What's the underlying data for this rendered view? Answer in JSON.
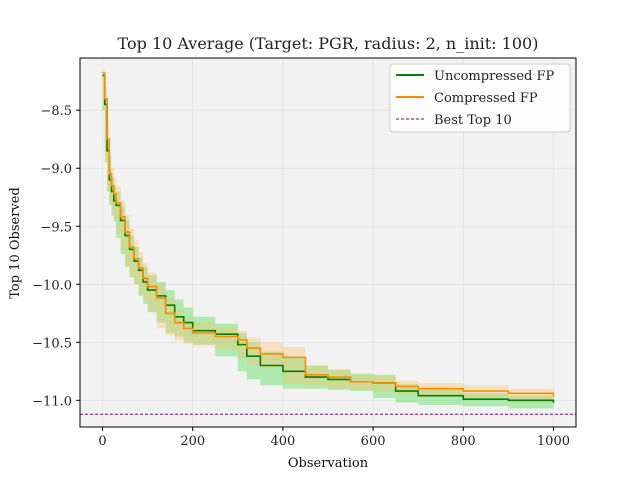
{
  "chart_data": {
    "type": "line",
    "title": "Top 10 Average (Target: PGR, radius: 2, n_init: 100)",
    "xlabel": "Observation",
    "ylabel": "Top 10 Observed",
    "xlim": [
      -50,
      1050
    ],
    "ylim": [
      -11.23,
      -8.05
    ],
    "xticks": [
      0,
      200,
      400,
      600,
      800,
      1000
    ],
    "yticks": [
      -8.5,
      -9.0,
      -9.5,
      -10.0,
      -10.5,
      -11.0
    ],
    "xtick_labels": [
      "0",
      "200",
      "400",
      "600",
      "800",
      "1000"
    ],
    "ytick_labels": [
      "−8.5",
      "−9.0",
      "−9.5",
      "−10.0",
      "−10.5",
      "−11.0"
    ],
    "grid": true,
    "legend_position": "top-right",
    "series": [
      {
        "name": "Uncompressed FP",
        "color": "#008000",
        "band_color": "#33dd33",
        "x": [
          0,
          5,
          10,
          15,
          20,
          25,
          30,
          40,
          50,
          60,
          70,
          80,
          90,
          100,
          120,
          140,
          160,
          180,
          200,
          250,
          300,
          320,
          350,
          400,
          450,
          500,
          550,
          600,
          650,
          700,
          800,
          900,
          1000
        ],
        "y": [
          -8.2,
          -8.45,
          -8.85,
          -9.1,
          -9.2,
          -9.28,
          -9.32,
          -9.45,
          -9.58,
          -9.7,
          -9.8,
          -9.88,
          -9.98,
          -10.05,
          -10.1,
          -10.18,
          -10.28,
          -10.33,
          -10.4,
          -10.43,
          -10.52,
          -10.62,
          -10.7,
          -10.75,
          -10.8,
          -10.82,
          -10.84,
          -10.85,
          -10.92,
          -10.96,
          -10.99,
          -11.0,
          -11.02
        ],
        "upper": [
          -8.18,
          -8.4,
          -8.75,
          -9.0,
          -9.08,
          -9.15,
          -9.2,
          -9.33,
          -9.45,
          -9.58,
          -9.68,
          -9.77,
          -9.85,
          -9.92,
          -9.98,
          -10.05,
          -10.13,
          -10.2,
          -10.28,
          -10.34,
          -10.42,
          -10.5,
          -10.58,
          -10.62,
          -10.7,
          -10.74,
          -10.77,
          -10.78,
          -10.86,
          -10.9,
          -10.94,
          -10.96,
          -10.98
        ],
        "lower": [
          -8.22,
          -8.5,
          -8.95,
          -9.2,
          -9.32,
          -9.41,
          -9.46,
          -9.6,
          -9.74,
          -9.85,
          -9.94,
          -10.0,
          -10.1,
          -10.17,
          -10.24,
          -10.33,
          -10.42,
          -10.45,
          -10.5,
          -10.52,
          -10.62,
          -10.75,
          -10.82,
          -10.87,
          -10.9,
          -10.9,
          -10.91,
          -10.92,
          -10.98,
          -11.02,
          -11.04,
          -11.05,
          -11.07
        ]
      },
      {
        "name": "Compressed FP",
        "color": "#ff8c00",
        "band_color": "#ffbf66",
        "x": [
          0,
          5,
          10,
          15,
          20,
          25,
          30,
          40,
          50,
          60,
          70,
          80,
          90,
          100,
          120,
          140,
          160,
          180,
          200,
          250,
          300,
          320,
          350,
          400,
          450,
          500,
          550,
          600,
          650,
          700,
          800,
          900,
          1000
        ],
        "y": [
          -8.18,
          -8.4,
          -8.75,
          -9.05,
          -9.15,
          -9.22,
          -9.3,
          -9.42,
          -9.55,
          -9.68,
          -9.78,
          -9.86,
          -9.95,
          -10.02,
          -10.12,
          -10.25,
          -10.33,
          -10.38,
          -10.42,
          -10.45,
          -10.48,
          -10.55,
          -10.6,
          -10.63,
          -10.78,
          -10.8,
          -10.84,
          -10.85,
          -10.88,
          -10.9,
          -10.92,
          -10.94,
          -10.97
        ],
        "upper": [
          -8.16,
          -8.3,
          -8.6,
          -8.9,
          -9.0,
          -9.08,
          -9.15,
          -9.28,
          -9.4,
          -9.52,
          -9.62,
          -9.72,
          -9.82,
          -9.9,
          -10.0,
          -10.12,
          -10.22,
          -10.28,
          -10.33,
          -10.37,
          -10.4,
          -10.46,
          -10.5,
          -10.54,
          -10.7,
          -10.73,
          -10.78,
          -10.79,
          -10.83,
          -10.85,
          -10.87,
          -10.9,
          -10.93
        ],
        "lower": [
          -8.2,
          -8.5,
          -8.9,
          -9.2,
          -9.3,
          -9.36,
          -9.45,
          -9.56,
          -9.7,
          -9.84,
          -9.94,
          -10.0,
          -10.08,
          -10.14,
          -10.24,
          -10.38,
          -10.44,
          -10.48,
          -10.51,
          -10.53,
          -10.56,
          -10.64,
          -10.7,
          -10.72,
          -10.86,
          -10.87,
          -10.9,
          -10.91,
          -10.93,
          -10.95,
          -10.97,
          -10.98,
          -11.02
        ]
      }
    ],
    "reference_line": {
      "name": "Best Top 10",
      "color": "#800080",
      "y": -11.12
    }
  }
}
